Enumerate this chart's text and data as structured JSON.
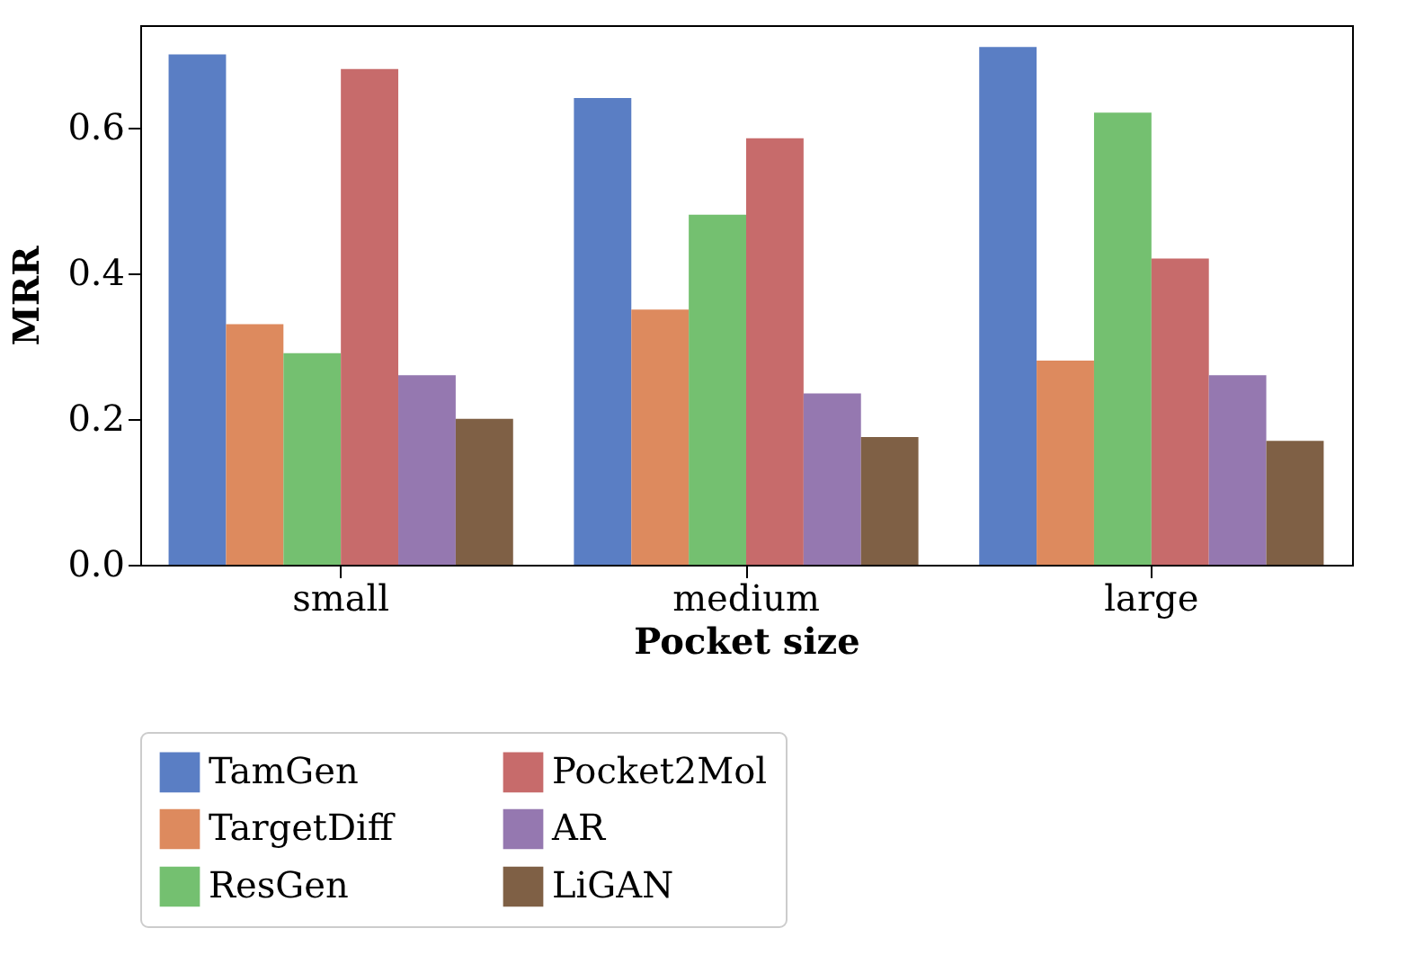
{
  "chart_data": {
    "type": "bar",
    "xlabel": "Pocket size",
    "ylabel": "MRR",
    "categories": [
      "small",
      "medium",
      "large"
    ],
    "series": [
      {
        "name": "TamGen",
        "color": "#5a7ec4",
        "values": [
          0.7,
          0.64,
          0.71
        ]
      },
      {
        "name": "TargetDiff",
        "color": "#dd8a5e",
        "values": [
          0.33,
          0.35,
          0.28
        ]
      },
      {
        "name": "ResGen",
        "color": "#74c070",
        "values": [
          0.29,
          0.48,
          0.62
        ]
      },
      {
        "name": "Pocket2Mol",
        "color": "#c76b6b",
        "values": [
          0.68,
          0.585,
          0.42
        ]
      },
      {
        "name": "AR",
        "color": "#9578b0",
        "values": [
          0.26,
          0.235,
          0.26
        ]
      },
      {
        "name": "LiGAN",
        "color": "#7f6045",
        "values": [
          0.2,
          0.175,
          0.17
        ]
      }
    ],
    "ylim": [
      0,
      0.74
    ],
    "yticks": [
      {
        "value": 0,
        "label": "0.0"
      },
      {
        "value": 0.2,
        "label": "0.2"
      },
      {
        "value": 0.4,
        "label": "0.4"
      },
      {
        "value": 0.6,
        "label": "0.6"
      }
    ],
    "grid": false,
    "legend": "bottom"
  }
}
